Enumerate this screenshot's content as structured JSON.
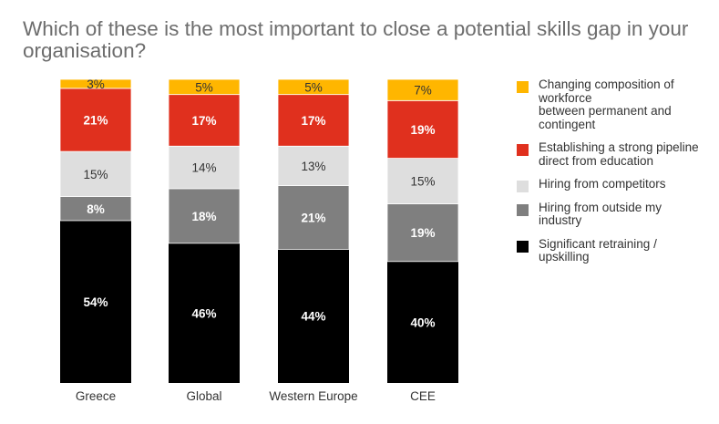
{
  "chart_data": {
    "type": "bar",
    "stacked": true,
    "title": "Which of these is the most important to close a potential skills gap in your organisation?",
    "categories": [
      "Greece",
      "Global",
      "Western Europe",
      "CEE"
    ],
    "series": [
      {
        "name": "Significant retraining / upskilling",
        "color": "#000000",
        "values": [
          54,
          46,
          44,
          40
        ],
        "labels": [
          "54%",
          "46%",
          "44%",
          "40%"
        ]
      },
      {
        "name": "Hiring from outside my industry",
        "color": "#7F7F7F",
        "values": [
          8,
          18,
          21,
          19
        ],
        "labels": [
          "8%",
          "18%",
          "21%",
          "19%"
        ]
      },
      {
        "name": "Hiring from competitors",
        "color": "#DEDEDE",
        "values": [
          15,
          14,
          13,
          15
        ],
        "labels": [
          "15%",
          "14%",
          "13%",
          "15%"
        ]
      },
      {
        "name": "Establishing a strong pipeline\n direct from education",
        "color": "#E0301E",
        "values": [
          21,
          17,
          17,
          19
        ],
        "labels": [
          "21%",
          "17%",
          "17%",
          "19%"
        ]
      },
      {
        "name": "Changing composition of workforce\n between permanent and contingent",
        "color": "#FFB600",
        "values": [
          3,
          5,
          5,
          7
        ],
        "labels": [
          "3%",
          "5%",
          "5%",
          "7%"
        ]
      }
    ],
    "legend_order": [
      4,
      3,
      2,
      1,
      0
    ],
    "legend_position": "right",
    "grid": false,
    "ylim": [
      0,
      100
    ]
  }
}
